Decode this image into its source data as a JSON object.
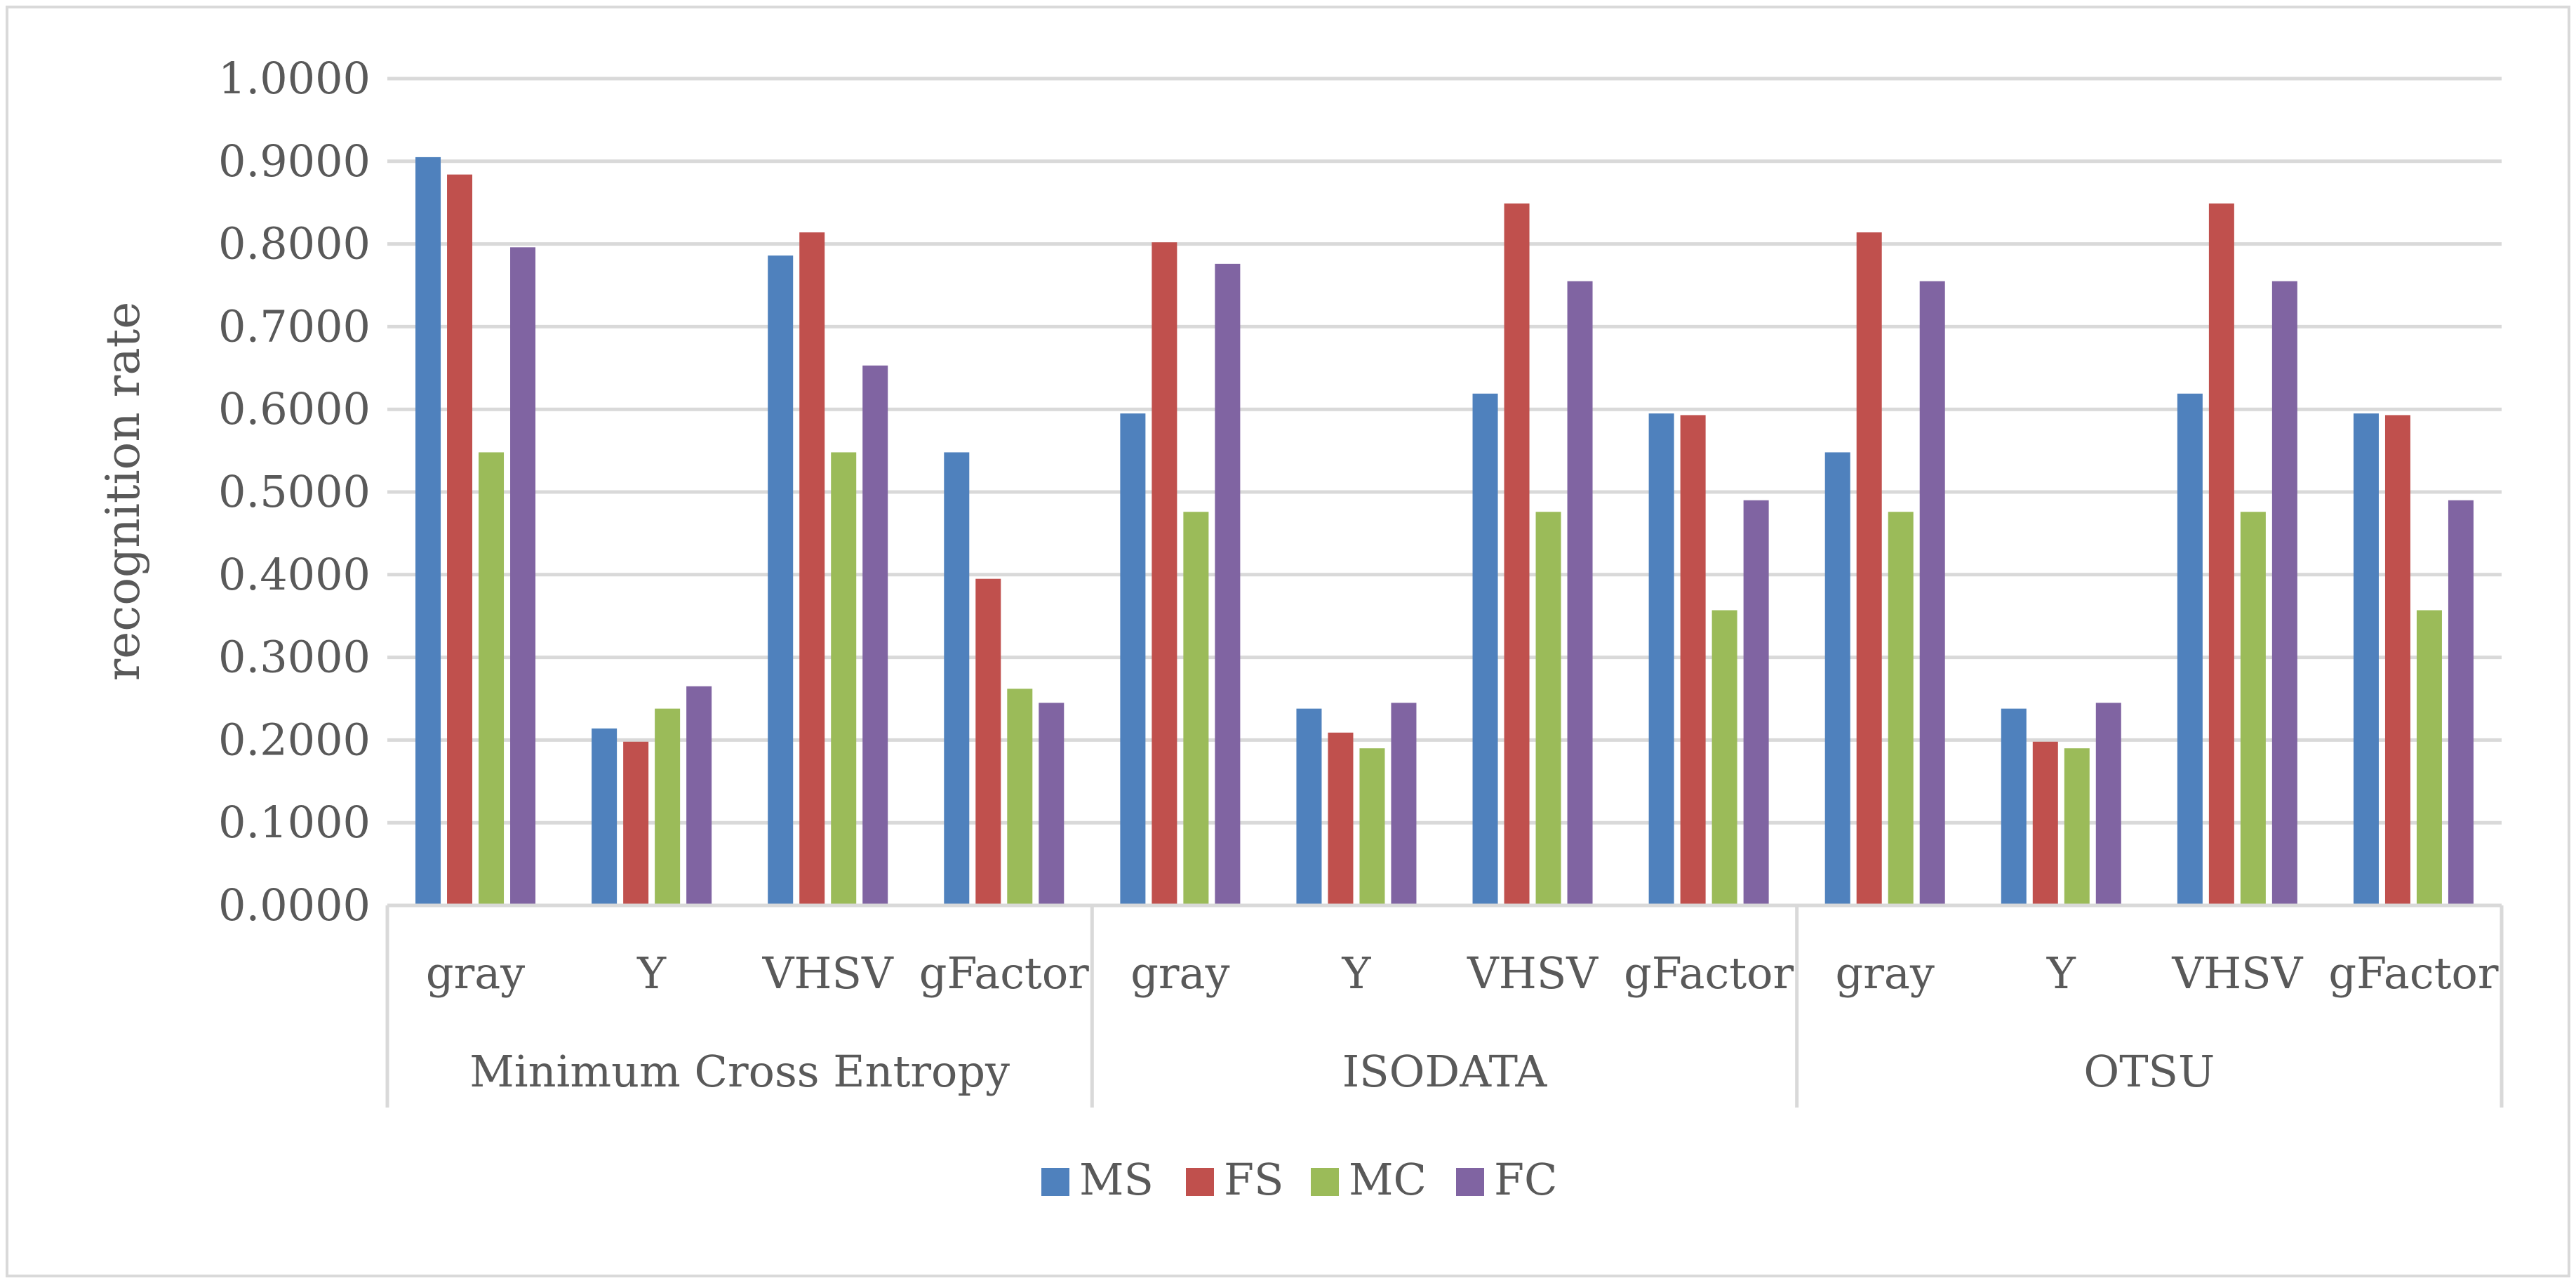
{
  "chart_data": {
    "type": "bar",
    "title": "",
    "xlabel": "",
    "ylabel": "recognition rate",
    "ylim": [
      0,
      1
    ],
    "yticks": [
      "0.0000",
      "0.1000",
      "0.2000",
      "0.3000",
      "0.4000",
      "0.5000",
      "0.6000",
      "0.7000",
      "0.8000",
      "0.9000",
      "1.0000"
    ],
    "grid": true,
    "legend_position": "bottom",
    "groups": [
      {
        "label": "Minimum Cross Entropy",
        "categories": [
          "gray",
          "Y",
          "VHSV",
          "gFactor"
        ]
      },
      {
        "label": "ISODATA",
        "categories": [
          "gray",
          "Y",
          "VHSV",
          "gFactor"
        ]
      },
      {
        "label": "OTSU",
        "categories": [
          "gray",
          "Y",
          "VHSV",
          "gFactor"
        ]
      }
    ],
    "series": [
      {
        "name": "MS",
        "color": "#4f81bd",
        "values": [
          0.905,
          0.214,
          0.786,
          0.548,
          0.595,
          0.238,
          0.619,
          0.595,
          0.548,
          0.238,
          0.619,
          0.595
        ]
      },
      {
        "name": "FS",
        "color": "#c0504d",
        "values": [
          0.884,
          0.198,
          0.814,
          0.395,
          0.802,
          0.209,
          0.849,
          0.593,
          0.814,
          0.198,
          0.849,
          0.593
        ]
      },
      {
        "name": "MC",
        "color": "#9bbb59",
        "values": [
          0.548,
          0.238,
          0.548,
          0.262,
          0.476,
          0.19,
          0.476,
          0.357,
          0.476,
          0.19,
          0.476,
          0.357
        ]
      },
      {
        "name": "FC",
        "color": "#8064a2",
        "values": [
          0.796,
          0.265,
          0.653,
          0.245,
          0.776,
          0.245,
          0.755,
          0.49,
          0.755,
          0.245,
          0.755,
          0.49
        ]
      }
    ]
  }
}
